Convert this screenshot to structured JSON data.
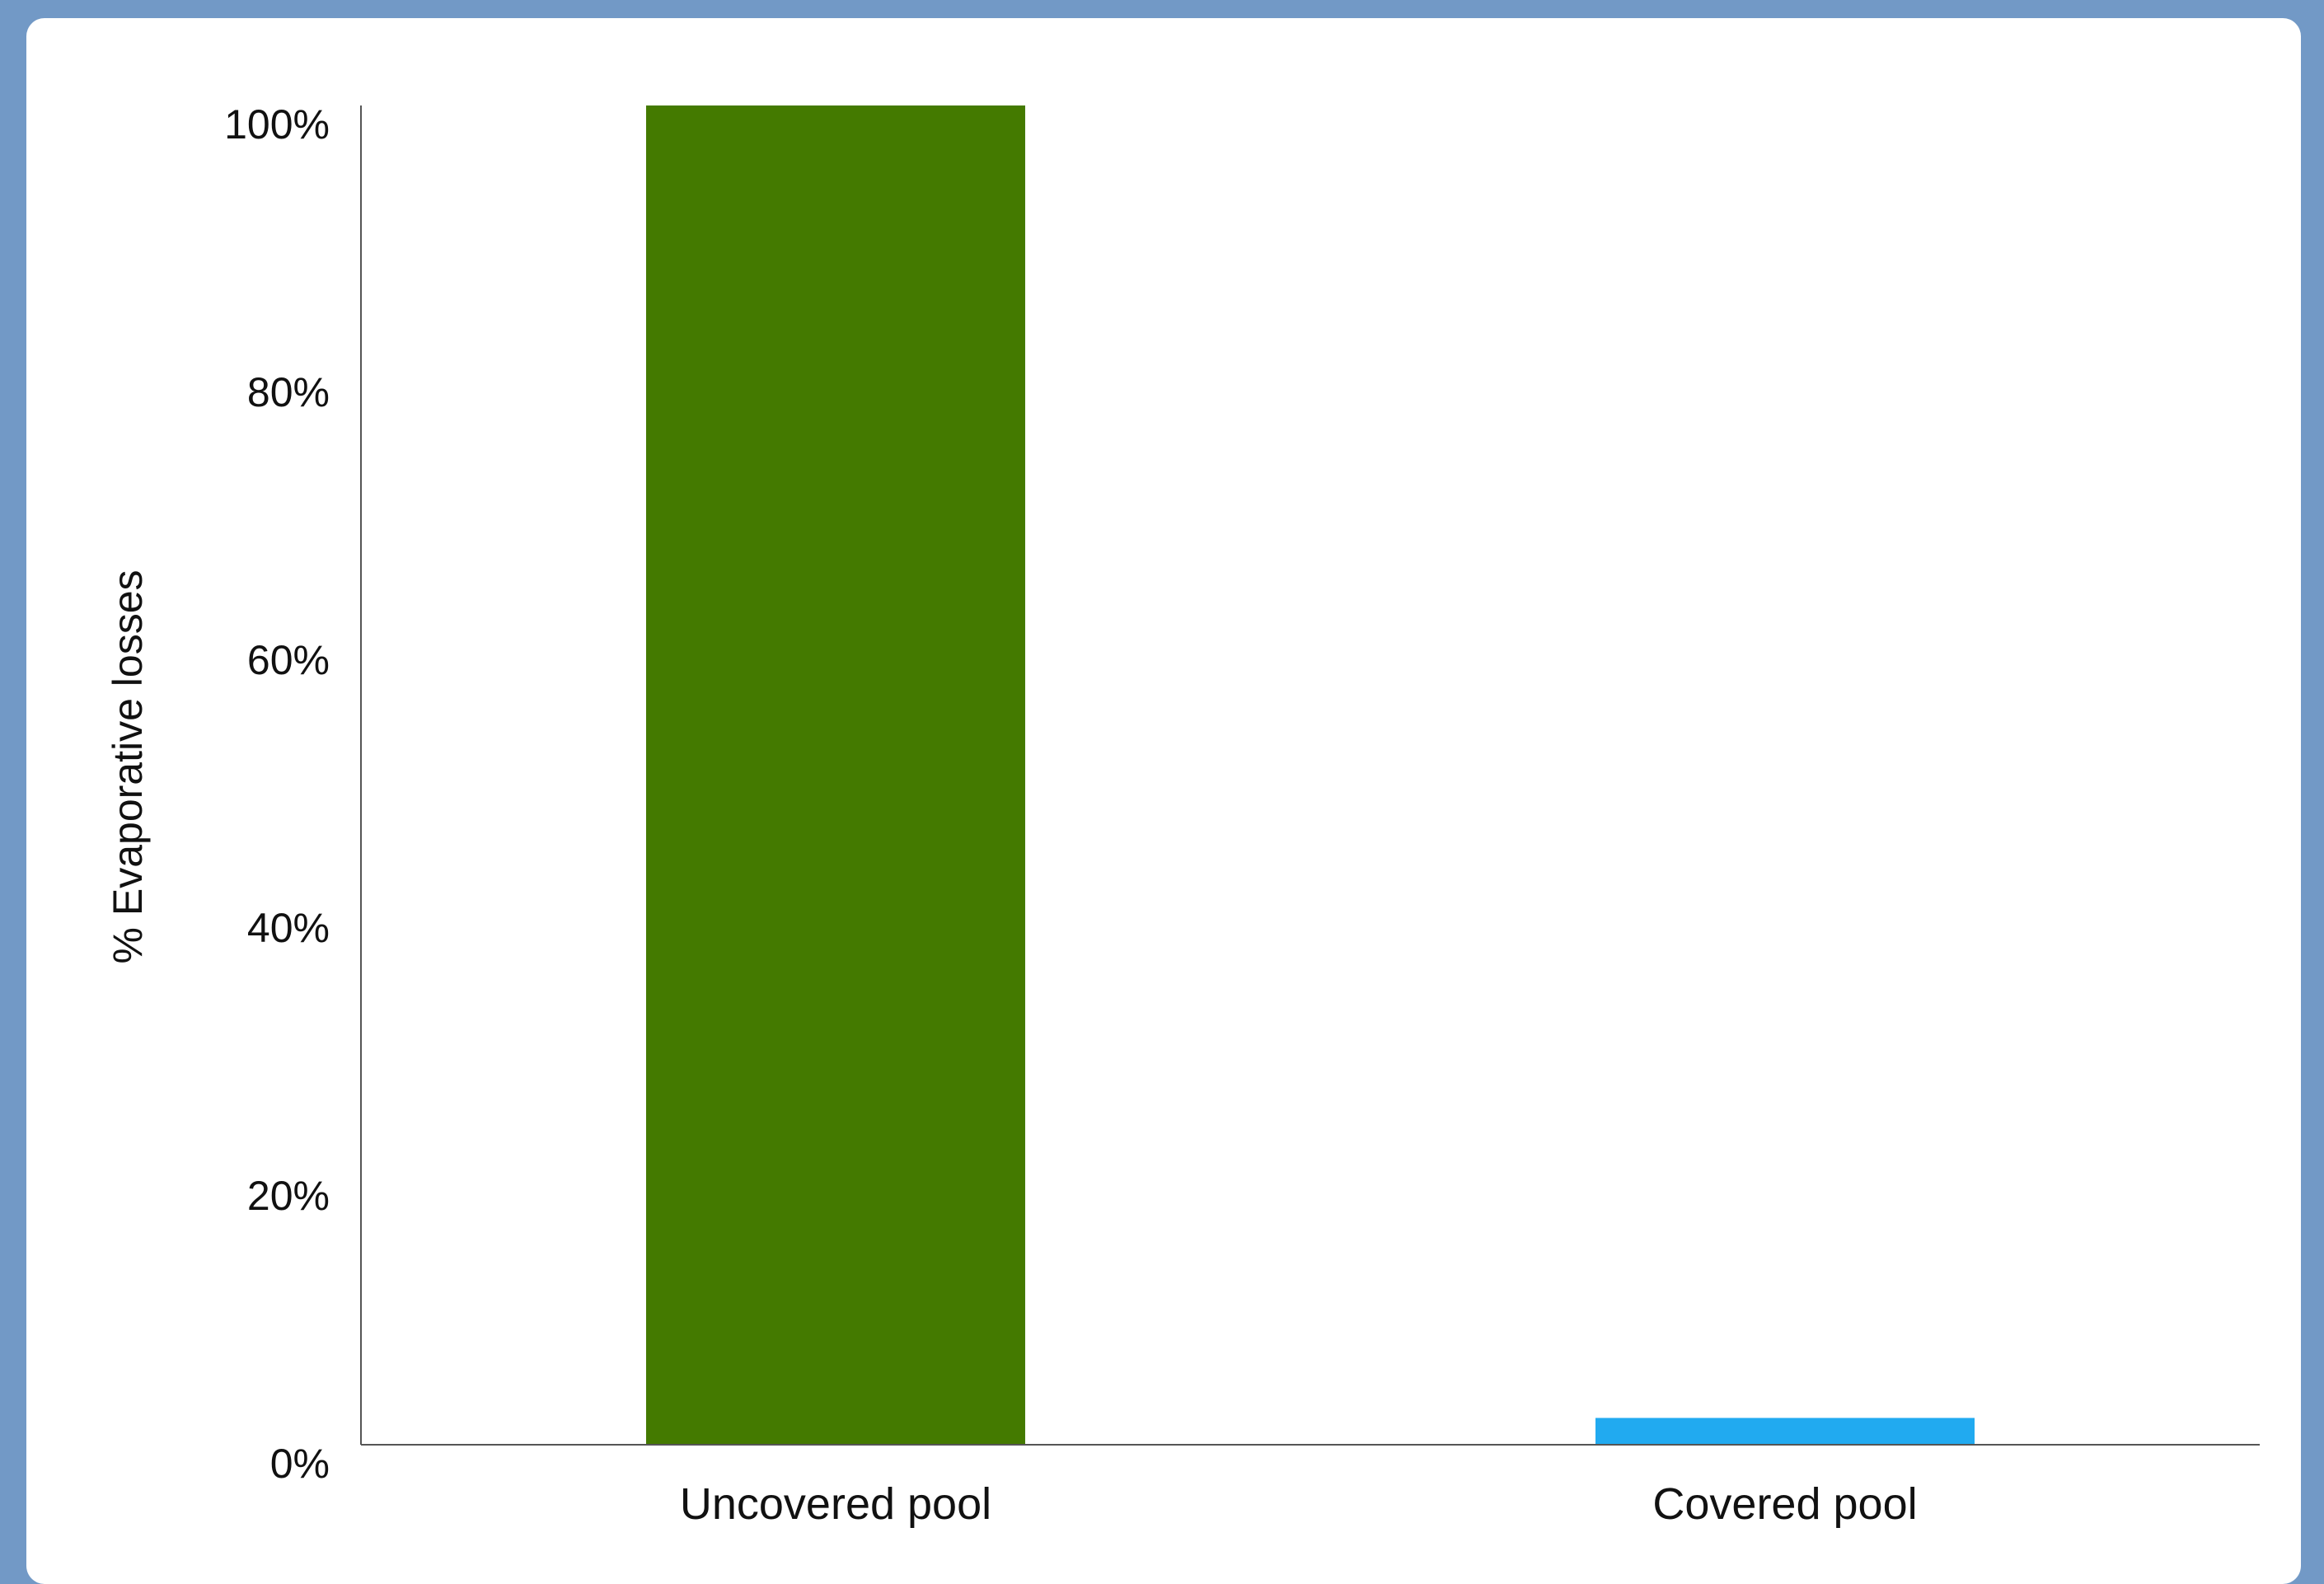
{
  "chart_data": {
    "type": "bar",
    "title": "",
    "xlabel": "",
    "ylabel": "% Evaporative losses",
    "categories": [
      "Uncovered pool",
      "Covered pool"
    ],
    "values": [
      100,
      2
    ],
    "ylim": [
      0,
      100
    ],
    "yticks": [
      0,
      20,
      40,
      60,
      80,
      100
    ],
    "ytick_labels": [
      "0%",
      "20%",
      "40%",
      "60%",
      "80%",
      "100%"
    ],
    "bar_colors": [
      "#447a00",
      "#21aaf0"
    ],
    "grid": false,
    "legend": "none"
  },
  "colors": {
    "page_background": "#7299c6",
    "panel_background": "#ffffff",
    "axis": "#555555"
  }
}
